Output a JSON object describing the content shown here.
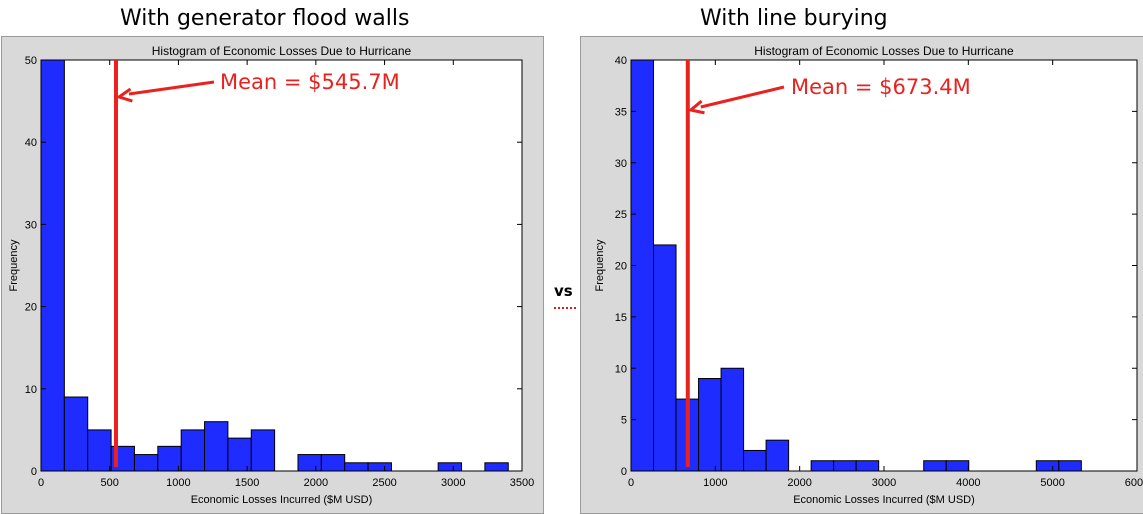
{
  "header": {
    "left_title": "With generator flood walls",
    "right_title": "With line burying",
    "vs_label": "vs"
  },
  "colors": {
    "bar": "#1f2cff",
    "mean_line": "#e8221f",
    "panel_bg": "#d9d9d9"
  },
  "chart_data": [
    {
      "type": "bar",
      "title": "Histogram of Economic Losses Due to Hurricane",
      "xlabel": "Economic Losses Incurred ($M USD)",
      "ylabel": "Frequency",
      "xlim": [
        0,
        3500
      ],
      "ylim": [
        0,
        50
      ],
      "xticks": [
        "0",
        "500",
        "1000",
        "1500",
        "2000",
        "2500",
        "3000",
        "3500"
      ],
      "yticks": [
        "0",
        "10",
        "20",
        "30",
        "40",
        "50"
      ],
      "bin_width": 170,
      "bin_starts": [
        0,
        170,
        340,
        510,
        680,
        850,
        1020,
        1190,
        1360,
        1530,
        1700,
        1870,
        2040,
        2210,
        2380,
        2550,
        2720,
        2890,
        3060,
        3230
      ],
      "values": [
        50,
        9,
        5,
        3,
        2,
        3,
        5,
        6,
        4,
        5,
        0,
        2,
        2,
        1,
        1,
        0,
        0,
        1,
        0,
        1
      ],
      "mean_value": 545.7,
      "mean_label": "Mean = $545.7M",
      "grid": false
    },
    {
      "type": "bar",
      "title": "Histogram of Economic Losses Due to Hurricane",
      "xlabel": "Economic Losses Incurred ($M USD)",
      "ylabel": "Frequency",
      "xlim": [
        0,
        6000
      ],
      "ylim": [
        0,
        40
      ],
      "xticks": [
        "0",
        "1000",
        "2000",
        "3000",
        "4000",
        "5000",
        "6000"
      ],
      "yticks": [
        "0",
        "5",
        "10",
        "15",
        "20",
        "25",
        "30",
        "35",
        "40"
      ],
      "bin_width": 267,
      "bin_starts": [
        0,
        267,
        534,
        801,
        1068,
        1335,
        1602,
        1869,
        2136,
        2403,
        2670,
        2937,
        3204,
        3471,
        3738,
        4005,
        4272,
        4539,
        4806,
        5073
      ],
      "values": [
        40,
        22,
        7,
        9,
        10,
        2,
        3,
        0,
        1,
        1,
        1,
        0,
        0,
        1,
        1,
        0,
        0,
        0,
        1,
        1
      ],
      "mean_value": 673.4,
      "mean_label": "Mean = $673.4M",
      "grid": false
    }
  ]
}
